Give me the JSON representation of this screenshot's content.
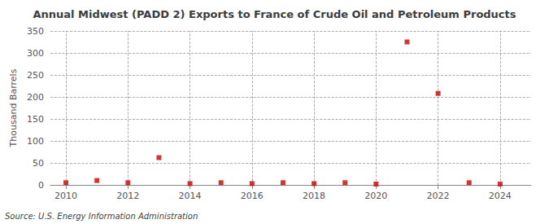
{
  "chart_data": {
    "type": "scatter",
    "title": "Annual Midwest (PADD 2) Exports to France of Crude Oil and Petroleum Products",
    "ylabel": "Thousand Barrels",
    "annotation": "Source: U.S. Energy Information Administration",
    "x": [
      2010,
      2011,
      2012,
      2013,
      2014,
      2015,
      2016,
      2017,
      2018,
      2019,
      2020,
      2021,
      2022,
      2023,
      2024
    ],
    "values": [
      5,
      10,
      5,
      62,
      3,
      5,
      3,
      5,
      3,
      5,
      2,
      325,
      208,
      5,
      2
    ],
    "color": "#cc0000",
    "marker": "square",
    "xlim": [
      2009.5,
      2025.0
    ],
    "xticks": [
      2010,
      2012,
      2014,
      2016,
      2018,
      2020,
      2022,
      2024
    ],
    "ylim": [
      0,
      350
    ],
    "yticks": [
      0,
      50,
      100,
      150,
      200,
      250,
      300,
      350
    ],
    "grid": true
  }
}
